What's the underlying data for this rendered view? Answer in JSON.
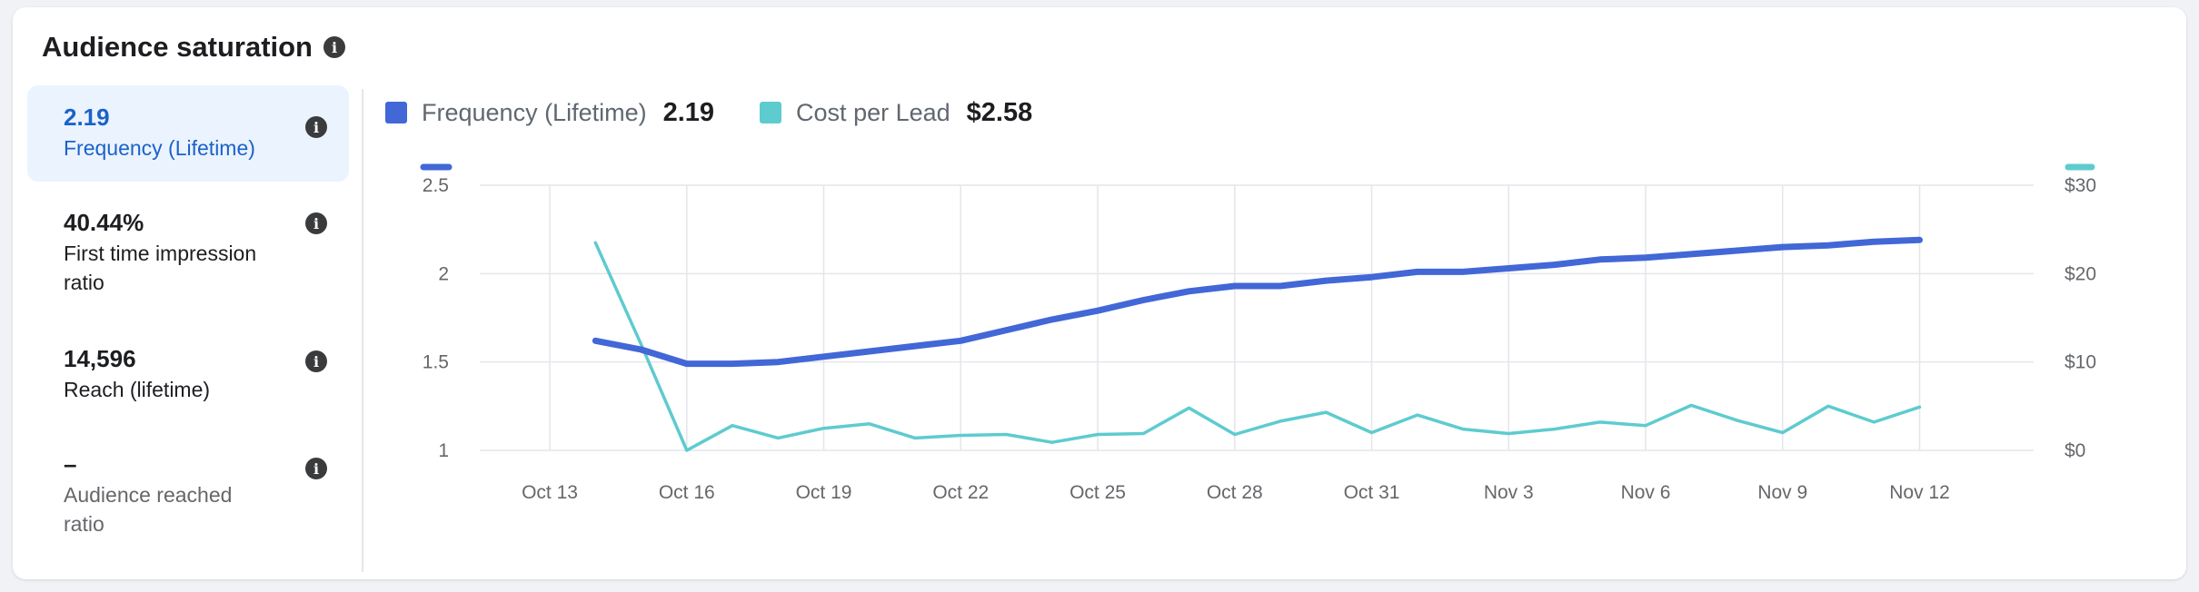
{
  "card": {
    "title": "Audience saturation"
  },
  "sidebar": {
    "metrics": [
      {
        "value": "2.19",
        "label": "Frequency (Lifetime)",
        "active": true
      },
      {
        "value": "40.44%",
        "label": "First time impression ratio",
        "active": false
      },
      {
        "value": "14,596",
        "label": "Reach (lifetime)",
        "active": false
      },
      {
        "value": "–",
        "label": "Audience reached ratio",
        "active": false
      }
    ]
  },
  "legend": {
    "items": [
      {
        "name": "Frequency (Lifetime)",
        "value": "2.19",
        "color": "#4267d6"
      },
      {
        "name": "Cost per Lead",
        "value": "$2.58",
        "color": "#5ecbcf"
      }
    ]
  },
  "colors": {
    "frequency": "#4267d6",
    "cost": "#5ecbcf",
    "grid": "#e4e6eb",
    "tick_text": "#65676b",
    "active_bg": "#ebf3ff",
    "active_text": "#1b62c9"
  },
  "chart_data": {
    "type": "line",
    "title": "",
    "xlabel": "",
    "ylabel": "",
    "grid": true,
    "x": [
      "Oct 14",
      "Oct 15",
      "Oct 16",
      "Oct 17",
      "Oct 18",
      "Oct 19",
      "Oct 20",
      "Oct 21",
      "Oct 22",
      "Oct 23",
      "Oct 24",
      "Oct 25",
      "Oct 26",
      "Oct 27",
      "Oct 28",
      "Oct 29",
      "Oct 30",
      "Oct 31",
      "Nov 1",
      "Nov 2",
      "Nov 3",
      "Nov 4",
      "Nov 5",
      "Nov 6",
      "Nov 7",
      "Nov 8",
      "Nov 9",
      "Nov 10",
      "Nov 11",
      "Nov 12"
    ],
    "x_tick_labels": [
      "Oct 13",
      "Oct 16",
      "Oct 19",
      "Oct 22",
      "Oct 25",
      "Oct 28",
      "Oct 31",
      "Nov 3",
      "Nov 6",
      "Nov 9",
      "Nov 12"
    ],
    "x_range": [
      "Oct 13",
      "Nov 12"
    ],
    "y_left": {
      "ticks": [
        "1",
        "1.5",
        "2",
        "2.5"
      ],
      "range": [
        1,
        2.5
      ]
    },
    "y_right": {
      "ticks": [
        "$0",
        "$10",
        "$20",
        "$30"
      ],
      "range": [
        0,
        30
      ]
    },
    "series": [
      {
        "name": "Frequency (Lifetime)",
        "axis": "left",
        "values": [
          1.62,
          1.57,
          1.49,
          1.49,
          1.5,
          1.53,
          1.56,
          1.59,
          1.62,
          1.68,
          1.74,
          1.79,
          1.85,
          1.9,
          1.93,
          1.93,
          1.96,
          1.98,
          2.01,
          2.01,
          2.03,
          2.05,
          2.08,
          2.09,
          2.11,
          2.13,
          2.15,
          2.16,
          2.18,
          2.19
        ]
      },
      {
        "name": "Cost per Lead",
        "axis": "right",
        "values": [
          23.5,
          12.0,
          0.0,
          2.8,
          1.4,
          2.5,
          3.0,
          1.4,
          1.7,
          1.8,
          0.9,
          1.8,
          1.9,
          4.8,
          1.8,
          3.3,
          4.3,
          2.0,
          4.0,
          2.4,
          1.9,
          2.4,
          3.2,
          2.8,
          5.1,
          3.4,
          2.0,
          5.0,
          3.2,
          4.9
        ]
      }
    ]
  }
}
